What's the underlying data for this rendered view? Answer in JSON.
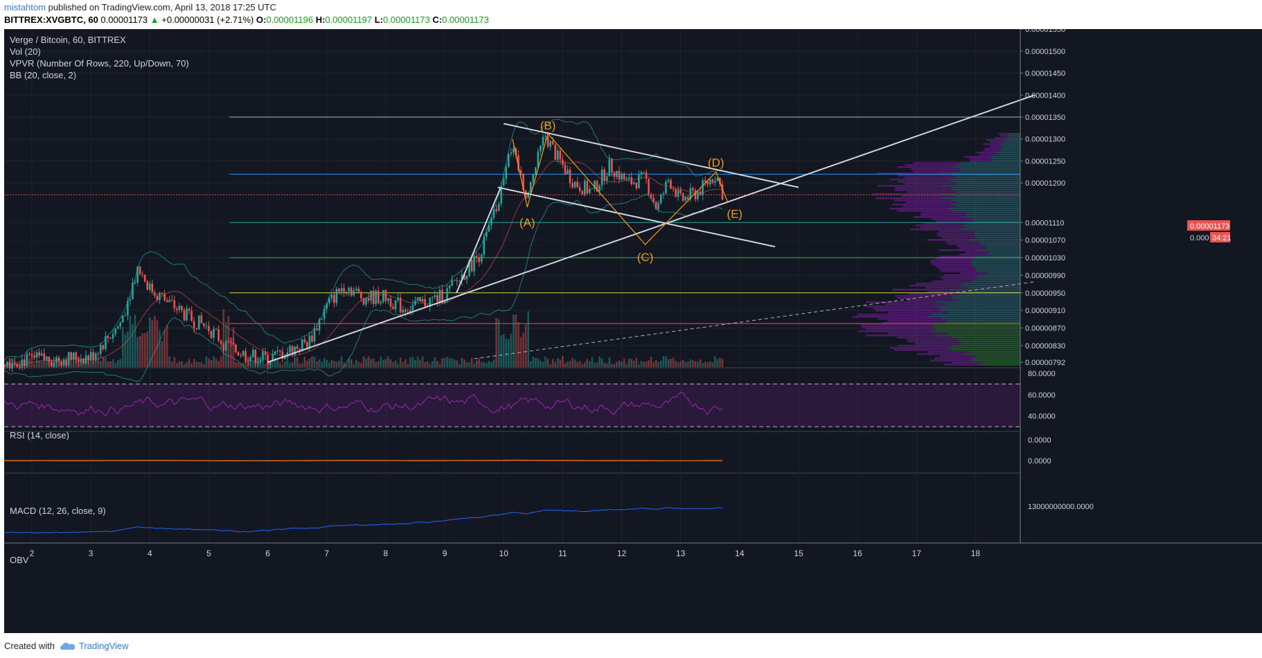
{
  "header": {
    "author": "mistahtom",
    "published_text": "published on TradingView.com, April 13, 2018 17:25 UTC",
    "symbol": "BITTREX:XVGBTC, 60",
    "last": "0.00001173",
    "change": "+0.00000031 (+2.71%)",
    "o_label": "O:",
    "o_value": "0.00001196",
    "h_label": "H:",
    "h_value": "0.00001197",
    "l_label": "L:",
    "l_value": "0.00001173",
    "c_label": "C:",
    "c_value": "0.00001173"
  },
  "legend": {
    "line1": "Verge / Bitcoin, 60, BITTREX",
    "line2": "Vol (20)",
    "line3": "VPVR (Number Of Rows, 220, Up/Down, 70)",
    "line4": "BB (20, close, 2)"
  },
  "panes": {
    "rsi_label": "RSI (14, close)",
    "macd_label": "MACD (12, 26, close, 9)",
    "obv_label": "OBV"
  },
  "price_tag": {
    "value": "0.00001173",
    "countdown": "34:21",
    "partial": "0.000"
  },
  "footer": {
    "created_with": "Created with",
    "brand": "TradingView"
  },
  "colors": {
    "background": "#131722",
    "up": "#26a69a",
    "down": "#ef5350",
    "pattern": "#f39c12",
    "rsi": "#9c27b0",
    "macd": "#2196f3",
    "signal": "#ff6d00",
    "price_tag": "#ef5350"
  },
  "chart_data": {
    "type": "candlestick",
    "title": "Verge / Bitcoin, 60, BITTREX",
    "x_ticks": [
      "2",
      "3",
      "4",
      "5",
      "6",
      "7",
      "8",
      "9",
      "10",
      "11",
      "12",
      "13",
      "14",
      "15",
      "16",
      "17",
      "18"
    ],
    "price_ticks": [
      "0.00001550",
      "0.00001500",
      "0.00001450",
      "0.00001400",
      "0.00001350",
      "0.00001300",
      "0.00001250",
      "0.00001200",
      "0.00001110",
      "0.00001070",
      "0.00001030",
      "0.00000990",
      "0.00000950",
      "0.00000910",
      "0.00000870",
      "0.00000830",
      "0.00000792"
    ],
    "rsi_ticks": [
      "80.0000",
      "60.0000",
      "40.0000"
    ],
    "macd_ticks": [
      "0.0000",
      "0.0000"
    ],
    "obv_ticks": [
      "13000000000.0000"
    ],
    "price_path": [
      [
        1.5,
        7.95e-06
      ],
      [
        2.5,
        8e-06
      ],
      [
        3.0,
        8.05e-06
      ],
      [
        3.5,
        8.8e-06
      ],
      [
        3.8,
        1.01e-05
      ],
      [
        4.0,
        9.6e-06
      ],
      [
        4.3,
        9.3e-06
      ],
      [
        4.7,
        8.9e-06
      ],
      [
        5.0,
        8.7e-06
      ],
      [
        5.3,
        8.3e-06
      ],
      [
        5.6,
        8.1e-06
      ],
      [
        6.0,
        8e-06
      ],
      [
        6.3,
        8.15e-06
      ],
      [
        6.7,
        8.4e-06
      ],
      [
        7.0,
        9.2e-06
      ],
      [
        7.3,
        9.7e-06
      ],
      [
        7.6,
        9.4e-06
      ],
      [
        8.0,
        9.4e-06
      ],
      [
        8.3,
        9.15e-06
      ],
      [
        8.6,
        9.25e-06
      ],
      [
        9.0,
        9.45e-06
      ],
      [
        9.3,
        9.9e-06
      ],
      [
        9.6,
        1.04e-05
      ],
      [
        9.9,
        1.15e-05
      ],
      [
        10.1,
        1.29e-05
      ],
      [
        10.4,
        1.17e-05
      ],
      [
        10.7,
        1.31e-05
      ],
      [
        10.9,
        1.26e-05
      ],
      [
        11.2,
        1.2e-05
      ],
      [
        11.5,
        1.18e-05
      ],
      [
        11.8,
        1.24e-05
      ],
      [
        12.1,
        1.2e-05
      ],
      [
        12.4,
        1.21e-05
      ],
      [
        12.6,
        1.14e-05
      ],
      [
        12.8,
        1.21e-05
      ],
      [
        13.0,
        1.16e-05
      ],
      [
        13.3,
        1.18e-05
      ],
      [
        13.6,
        1.22e-05
      ],
      [
        13.72,
        1.173e-05
      ]
    ],
    "horizontal_levels": [
      1.35e-05,
      1.22e-05,
      1.11e-05,
      1.03e-05,
      9.5e-06,
      8.8e-06
    ],
    "wave_points": [
      {
        "label": "(A)",
        "x": 10.4,
        "y": 1.145e-05
      },
      {
        "label": "(B)",
        "x": 10.75,
        "y": 1.312e-05
      },
      {
        "label": "(C)",
        "x": 12.4,
        "y": 1.06e-05
      },
      {
        "label": "(D)",
        "x": 13.6,
        "y": 1.225e-05
      },
      {
        "label": "(E)",
        "x": 13.8,
        "y": 1.155e-05
      }
    ],
    "trendlines": [
      {
        "from": [
          6.0,
          7.92e-06
        ],
        "to": [
          19.0,
          1.4e-05
        ]
      },
      {
        "from": [
          10.0,
          1.335e-05
        ],
        "to": [
          15.0,
          1.19e-05
        ]
      },
      {
        "from": [
          9.9,
          1.19e-05
        ],
        "to": [
          14.6,
          1.055e-05
        ]
      },
      {
        "from": [
          9.2,
          9.5e-06
        ],
        "to": [
          9.95,
          1.19e-05
        ]
      }
    ],
    "rsi_levels": [
      70,
      30
    ],
    "legend": "none",
    "grid": true
  }
}
